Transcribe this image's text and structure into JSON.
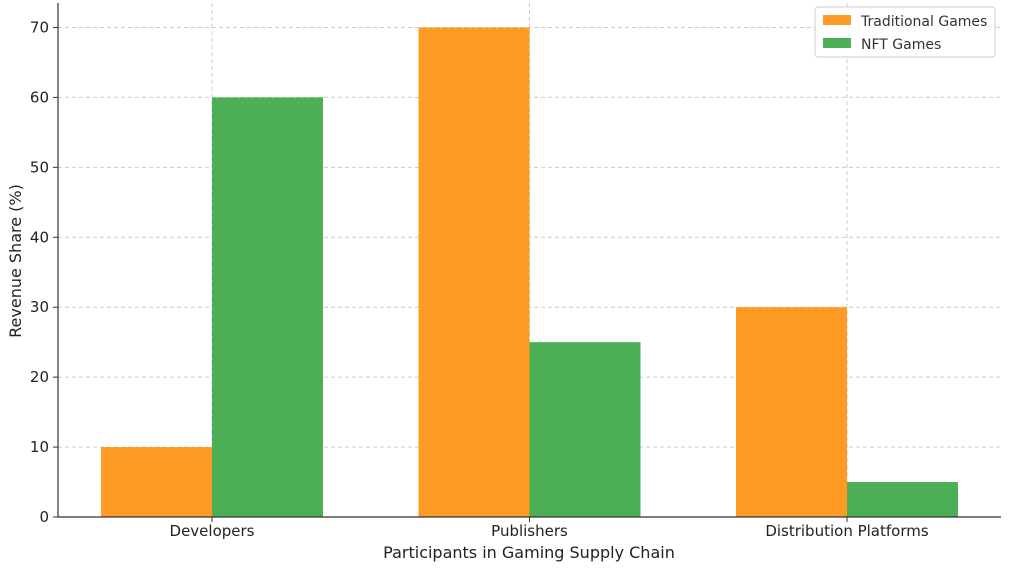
{
  "chart_data": {
    "type": "bar",
    "title": "",
    "xlabel": "Participants in Gaming Supply Chain",
    "ylabel": "Revenue Share (%)",
    "categories": [
      "Developers",
      "Publishers",
      "Distribution Platforms"
    ],
    "series": [
      {
        "name": "Traditional Games",
        "color": "#ff9a24",
        "values": [
          10,
          70,
          30
        ]
      },
      {
        "name": "NFT Games",
        "color": "#4caf55",
        "values": [
          60,
          25,
          5
        ]
      }
    ],
    "ylim": [
      0,
      73.5
    ],
    "yticks": [
      0,
      10,
      20,
      30,
      40,
      50,
      60,
      70
    ],
    "grid": true,
    "legend_position": "top-right"
  }
}
